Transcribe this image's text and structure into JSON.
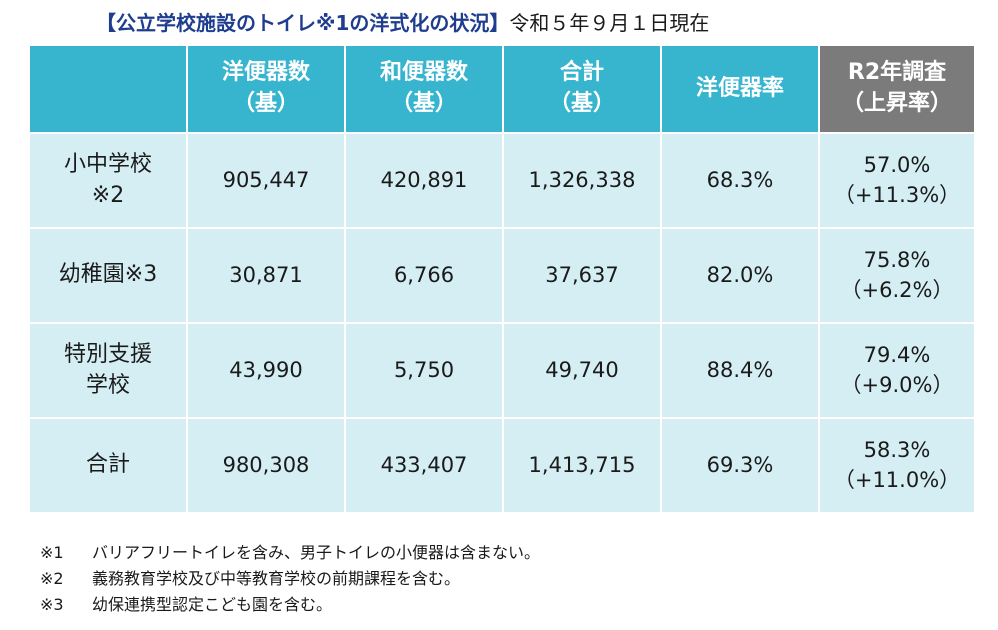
{
  "title": {
    "main": "【公立学校施設のトイレ※1の洋式化の状況】",
    "sub": "令和５年９月１日現在"
  },
  "table": {
    "headers": [
      {
        "l1": "",
        "l2": ""
      },
      {
        "l1": "洋便器数",
        "l2": "（基）"
      },
      {
        "l1": "和便器数",
        "l2": "（基）"
      },
      {
        "l1": "合計",
        "l2": "（基）"
      },
      {
        "l1": "洋便器率",
        "l2": ""
      },
      {
        "l1": "R2年調査",
        "l2": "（上昇率）"
      }
    ],
    "rows": [
      {
        "label_l1": "小中学校",
        "label_l2": "※2",
        "western": "905,447",
        "japanese": "420,891",
        "total": "1,326,338",
        "rate": "68.3%",
        "r2_rate": "57.0%",
        "r2_increase": "（+11.3%）"
      },
      {
        "label_l1": "幼稚園※3",
        "label_l2": "",
        "western": "30,871",
        "japanese": "6,766",
        "total": "37,637",
        "rate": "82.0%",
        "r2_rate": "75.8%",
        "r2_increase": "（+6.2%）"
      },
      {
        "label_l1": "特別支援",
        "label_l2": "学校",
        "western": "43,990",
        "japanese": "5,750",
        "total": "49,740",
        "rate": "88.4%",
        "r2_rate": "79.4%",
        "r2_increase": "（+9.0%）"
      },
      {
        "label_l1": "合計",
        "label_l2": "",
        "western": "980,308",
        "japanese": "433,407",
        "total": "1,413,715",
        "rate": "69.3%",
        "r2_rate": "58.3%",
        "r2_increase": "（+11.0%）"
      }
    ]
  },
  "notes": [
    {
      "mark": "※1",
      "text": "バリアフリートイレを含み、男子トイレの小便器は含まない。"
    },
    {
      "mark": "※2",
      "text": "義務教育学校及び中等教育学校の前期課程を含む。"
    },
    {
      "mark": "※3",
      "text": "幼保連携型認定こども園を含む。"
    }
  ],
  "colors": {
    "header_bg": "#37b5cf",
    "header_r2_bg": "#7b7b7b",
    "body_bg": "#d4eef3",
    "title_main": "#1f3d8f"
  }
}
